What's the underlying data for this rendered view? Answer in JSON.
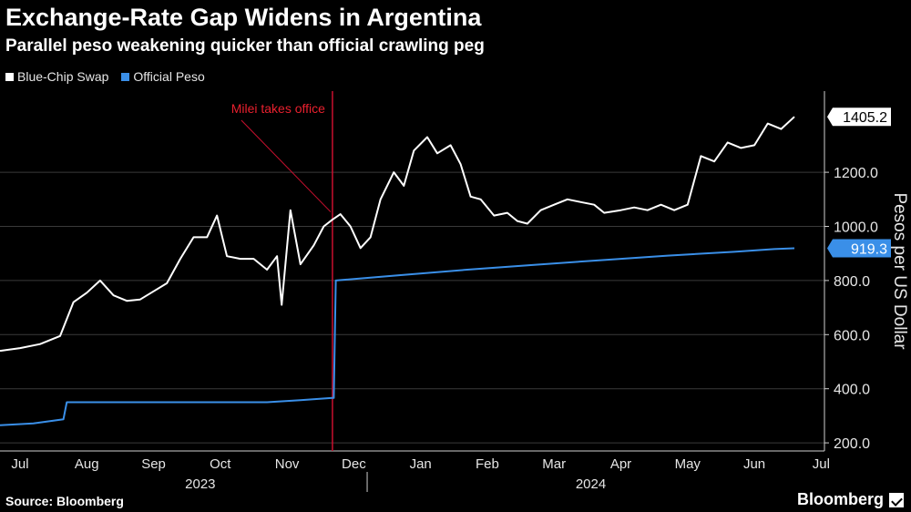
{
  "chart_data": {
    "type": "line",
    "title": "Exchange-Rate Gap Widens in Argentina",
    "subtitle": "Parallel peso weakening quicker than official crawling peg",
    "ylabel": "Pesos per US Dollar",
    "ylim": [
      170,
      1500
    ],
    "yticks": [
      200,
      400,
      600,
      800,
      1000,
      1200
    ],
    "ytick_labels": [
      "200.0",
      "400.0",
      "600.0",
      "800.0",
      "1000.0",
      "1200.0"
    ],
    "xlim": [
      0,
      12.35
    ],
    "month_labels": [
      "Jul",
      "Aug",
      "Sep",
      "Oct",
      "Nov",
      "Dec",
      "Jan",
      "Feb",
      "Mar",
      "Apr",
      "May",
      "Jun",
      "Jul"
    ],
    "month_positions": [
      0.3,
      1.3,
      2.3,
      3.3,
      4.3,
      5.3,
      6.3,
      7.3,
      8.3,
      9.3,
      10.3,
      11.3,
      12.3
    ],
    "year_labels": [
      "2023",
      "2024"
    ],
    "year_positions": [
      3.0,
      8.85
    ],
    "year_divider": 5.5,
    "annotation": {
      "text": "Milei takes office",
      "x": 4.98,
      "y": 1020
    },
    "series": [
      {
        "name": "Blue-Chip Swap",
        "color": "#ffffff",
        "end_label": "1405.2",
        "points": [
          [
            0,
            540
          ],
          [
            0.3,
            550
          ],
          [
            0.6,
            565
          ],
          [
            0.9,
            595
          ],
          [
            1.1,
            720
          ],
          [
            1.3,
            755
          ],
          [
            1.5,
            800
          ],
          [
            1.7,
            745
          ],
          [
            1.9,
            725
          ],
          [
            2.1,
            730
          ],
          [
            2.3,
            760
          ],
          [
            2.5,
            790
          ],
          [
            2.7,
            880
          ],
          [
            2.9,
            960
          ],
          [
            3.1,
            960
          ],
          [
            3.25,
            1040
          ],
          [
            3.4,
            890
          ],
          [
            3.6,
            880
          ],
          [
            3.8,
            880
          ],
          [
            4.0,
            840
          ],
          [
            4.15,
            890
          ],
          [
            4.22,
            710
          ],
          [
            4.35,
            1060
          ],
          [
            4.5,
            860
          ],
          [
            4.7,
            930
          ],
          [
            4.85,
            1000
          ],
          [
            4.98,
            1025
          ],
          [
            5.1,
            1045
          ],
          [
            5.25,
            1000
          ],
          [
            5.4,
            920
          ],
          [
            5.55,
            960
          ],
          [
            5.7,
            1100
          ],
          [
            5.9,
            1200
          ],
          [
            6.05,
            1150
          ],
          [
            6.2,
            1280
          ],
          [
            6.4,
            1330
          ],
          [
            6.55,
            1270
          ],
          [
            6.75,
            1300
          ],
          [
            6.9,
            1230
          ],
          [
            7.05,
            1110
          ],
          [
            7.2,
            1100
          ],
          [
            7.4,
            1040
          ],
          [
            7.6,
            1050
          ],
          [
            7.75,
            1020
          ],
          [
            7.9,
            1010
          ],
          [
            8.1,
            1060
          ],
          [
            8.3,
            1080
          ],
          [
            8.5,
            1100
          ],
          [
            8.7,
            1090
          ],
          [
            8.9,
            1080
          ],
          [
            9.05,
            1050
          ],
          [
            9.3,
            1060
          ],
          [
            9.5,
            1070
          ],
          [
            9.7,
            1060
          ],
          [
            9.9,
            1080
          ],
          [
            10.1,
            1060
          ],
          [
            10.3,
            1080
          ],
          [
            10.5,
            1260
          ],
          [
            10.7,
            1240
          ],
          [
            10.9,
            1310
          ],
          [
            11.1,
            1290
          ],
          [
            11.3,
            1300
          ],
          [
            11.5,
            1380
          ],
          [
            11.7,
            1360
          ],
          [
            11.9,
            1405
          ]
        ]
      },
      {
        "name": "Official Peso",
        "color": "#3a8fe8",
        "end_label": "919.3",
        "points": [
          [
            0,
            265
          ],
          [
            0.5,
            272
          ],
          [
            0.95,
            287
          ],
          [
            1.0,
            350
          ],
          [
            2.0,
            350
          ],
          [
            3.0,
            350
          ],
          [
            4.0,
            350
          ],
          [
            4.5,
            358
          ],
          [
            4.98,
            366
          ],
          [
            5.0,
            366
          ],
          [
            5.03,
            800
          ],
          [
            6.0,
            820
          ],
          [
            7.0,
            840
          ],
          [
            8.0,
            858
          ],
          [
            9.0,
            875
          ],
          [
            10.0,
            892
          ],
          [
            11.0,
            906
          ],
          [
            11.6,
            916
          ],
          [
            11.9,
            919.3
          ]
        ]
      }
    ]
  },
  "legend": {
    "items": [
      {
        "label": "Blue-Chip Swap",
        "color": "#ffffff"
      },
      {
        "label": "Official Peso",
        "color": "#3a8fe8"
      }
    ]
  },
  "footer": {
    "source": "Source: Bloomberg",
    "brand": "Bloomberg"
  }
}
